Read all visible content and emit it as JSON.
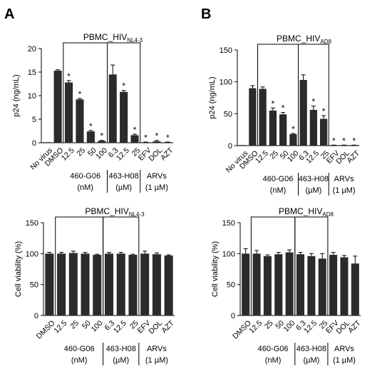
{
  "panels": [
    {
      "label": "A"
    },
    {
      "label": "B"
    }
  ],
  "colors": {
    "bar": "#2b2b2b",
    "axis": "#000000",
    "background": "#ffffff"
  },
  "chart_data": [
    {
      "type": "bar",
      "panel": "A",
      "title_main": "PBMC_HIV",
      "title_sub": "NL4-3",
      "ylabel": "p24 (ng/mL)",
      "ylim": [
        0,
        20
      ],
      "yticks": [
        0,
        5,
        10,
        15,
        20
      ],
      "categories": [
        "No virus",
        "DMSO",
        "12.5",
        "25",
        "50",
        "100",
        "6.3",
        "12.5",
        "25",
        "EFV",
        "DOL",
        "AZT"
      ],
      "values": [
        0,
        15.3,
        12.8,
        9.2,
        2.4,
        0.4,
        14.5,
        10.8,
        1.6,
        0.1,
        0.3,
        0.1
      ],
      "errors": [
        0,
        0.2,
        0.4,
        0.2,
        0.2,
        0.1,
        2.0,
        0.3,
        0.2,
        0.05,
        0.2,
        0.05
      ],
      "significant": [
        false,
        false,
        true,
        true,
        true,
        true,
        false,
        true,
        true,
        true,
        true,
        true
      ],
      "groups": [
        {
          "start": 2,
          "end": 5,
          "label1": "460-G06",
          "label2": "(nM)"
        },
        {
          "start": 6,
          "end": 8,
          "label1": "463-H08",
          "label2": "(µM)"
        },
        {
          "start": 9,
          "end": 11,
          "label1": "ARVs",
          "label2": "(1 µM)"
        }
      ],
      "boxes": [
        [
          2,
          5
        ],
        [
          6,
          8
        ]
      ]
    },
    {
      "type": "bar",
      "panel": "B",
      "title_main": "PBMC_HIV",
      "title_sub": "AD8",
      "ylabel": "p24 (ng/mL)",
      "ylim": [
        0,
        150
      ],
      "yticks": [
        0,
        50,
        100,
        150
      ],
      "categories": [
        "No virus",
        "DMSO",
        "12.5",
        "25",
        "50",
        "100",
        "6.3",
        "12.5",
        "25",
        "EFV",
        "DOL",
        "AZT"
      ],
      "values": [
        0,
        90,
        89,
        55,
        49,
        18,
        103,
        56,
        42,
        0.5,
        0.5,
        0.5
      ],
      "errors": [
        0,
        4,
        3,
        4,
        3,
        1,
        8,
        6,
        5,
        0.3,
        0.3,
        0.3
      ],
      "significant": [
        false,
        false,
        false,
        true,
        true,
        true,
        false,
        true,
        true,
        true,
        true,
        true
      ],
      "groups": [
        {
          "start": 2,
          "end": 5,
          "label1": "460-G06",
          "label2": "(nM)"
        },
        {
          "start": 6,
          "end": 8,
          "label1": "463-H08",
          "label2": "(µM)"
        },
        {
          "start": 9,
          "end": 11,
          "label1": "ARVs",
          "label2": "(1 µM)"
        }
      ],
      "boxes": [
        [
          2,
          5
        ],
        [
          6,
          8
        ]
      ]
    },
    {
      "type": "bar",
      "panel": "A",
      "title_main": "PBMC_HIV",
      "title_sub": "NL4-3",
      "ylabel": "Cell viability (%)",
      "ylim": [
        0,
        150
      ],
      "yticks": [
        0,
        50,
        100,
        150
      ],
      "categories": [
        "DMSO",
        "12.5",
        "25",
        "50",
        "100",
        "6.3",
        "12.5",
        "25",
        "EFV",
        "DOL",
        "AZT"
      ],
      "values": [
        100,
        100,
        101,
        100,
        98,
        100,
        100,
        98,
        100,
        99,
        97
      ],
      "errors": [
        2,
        2,
        3,
        2,
        1,
        2,
        2,
        1,
        4,
        2,
        1
      ],
      "significant": [
        false,
        false,
        false,
        false,
        false,
        false,
        false,
        false,
        false,
        false,
        false
      ],
      "groups": [
        {
          "start": 1,
          "end": 4,
          "label1": "460-G06",
          "label2": "(nM)"
        },
        {
          "start": 5,
          "end": 7,
          "label1": "463-H08",
          "label2": "(µM)"
        },
        {
          "start": 8,
          "end": 10,
          "label1": "ARVs",
          "label2": "(1 µM)"
        }
      ],
      "boxes": [
        [
          1,
          4
        ],
        [
          5,
          7
        ]
      ]
    },
    {
      "type": "bar",
      "panel": "B",
      "title_main": "PBMC_HIV",
      "title_sub": "AD8",
      "ylabel": "Cell viability (%)",
      "ylim": [
        0,
        150
      ],
      "yticks": [
        0,
        50,
        100,
        150
      ],
      "categories": [
        "DMSO",
        "12.5",
        "25",
        "50",
        "100",
        "6.3",
        "12.5",
        "25",
        "EFV",
        "DOL",
        "AZT"
      ],
      "values": [
        100,
        100,
        96,
        99,
        102,
        99,
        96,
        92,
        98,
        94,
        84
      ],
      "errors": [
        8,
        5,
        2,
        3,
        4,
        3,
        4,
        8,
        4,
        3,
        12
      ],
      "significant": [
        false,
        false,
        false,
        false,
        false,
        false,
        false,
        false,
        false,
        false,
        false
      ],
      "groups": [
        {
          "start": 1,
          "end": 4,
          "label1": "460-G06",
          "label2": "(nM)"
        },
        {
          "start": 5,
          "end": 7,
          "label1": "463-H08",
          "label2": "(µM)"
        },
        {
          "start": 8,
          "end": 10,
          "label1": "ARVs",
          "label2": "(1 µM)"
        }
      ],
      "boxes": [
        [
          1,
          4
        ],
        [
          5,
          7
        ]
      ]
    }
  ]
}
